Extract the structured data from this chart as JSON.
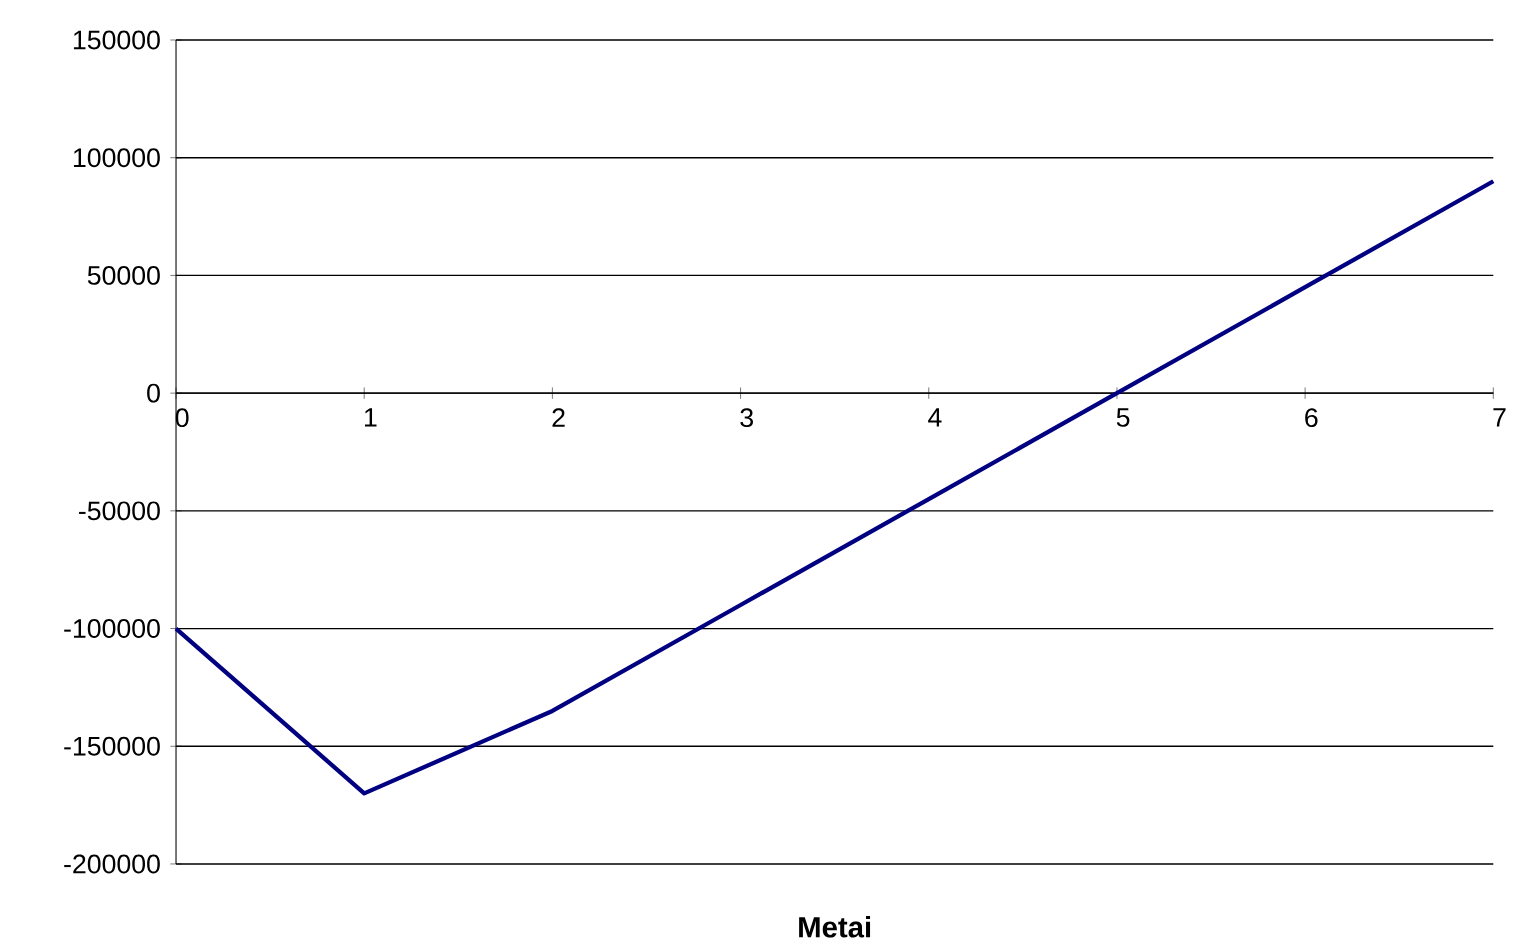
{
  "chart_data": {
    "type": "line",
    "xlabel": "Metai",
    "x": [
      0,
      1,
      2,
      3,
      4,
      5,
      6,
      7
    ],
    "series": [
      {
        "color": "#000080",
        "values": [
          -100000,
          -170000,
          -135000,
          -90000,
          -45000,
          0,
          45000,
          90000
        ]
      }
    ],
    "xlim": [
      0,
      7
    ],
    "ylim": [
      -200000,
      150000
    ],
    "xticks": [
      0,
      1,
      2,
      3,
      4,
      5,
      6,
      7
    ],
    "yticks": [
      -200000,
      -150000,
      -100000,
      -50000,
      0,
      50000,
      100000,
      150000
    ],
    "grid": "y",
    "marker": "none",
    "line_style": "solid"
  }
}
